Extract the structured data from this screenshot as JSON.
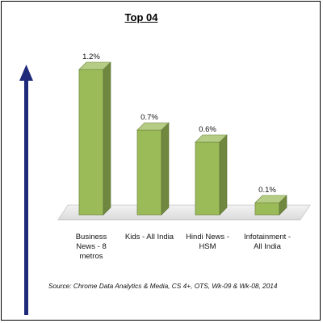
{
  "chart_data": {
    "type": "bar",
    "title": "Top 04",
    "categories": [
      [
        "Business",
        "News - 8",
        "metros"
      ],
      [
        "Kids - All India"
      ],
      [
        "Hindi News -",
        "HSM"
      ],
      [
        "Infotainment -",
        "All India"
      ]
    ],
    "values": [
      1.2,
      0.7,
      0.6,
      0.1
    ],
    "value_labels": [
      "1.2%",
      "0.7%",
      "0.6%",
      "0.1%"
    ],
    "ylim": [
      0,
      1.2
    ],
    "grid": false,
    "legend": "none",
    "bar_color": "#9BBB59",
    "source": "Source: Chrome Data Analytics & Media, CS 4+,  OTS, Wk-09 & Wk-08, 2014",
    "arrow_color": "#1F2A7A"
  }
}
